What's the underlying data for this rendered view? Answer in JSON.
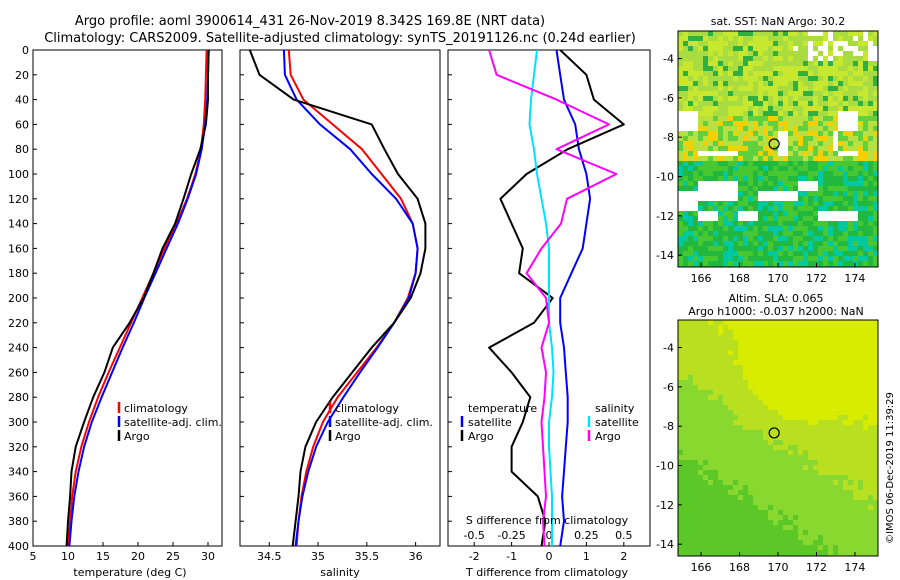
{
  "figure": {
    "title_line1": "Argo profile: aoml 3900614_431 26-Nov-2019 8.342S 169.8E (NRT data)",
    "title_line2": "Climatology: CARS2009. Satellite-adjusted climatology: synTS_20191126.nc (0.24d earlier)",
    "stamp": "©IMOS 06-Dec-2019 11:39:29"
  },
  "colors": {
    "climatology": "#ff0000",
    "satellite": "#0000ff",
    "argo": "#000000",
    "satellite_salinity": "#00e0ff",
    "salinity_diff": "#ff00ff"
  },
  "chart_data": [
    {
      "id": "temperature",
      "type": "line",
      "xlabel": "temperature (deg C)",
      "ylabel": "",
      "xlim": [
        5,
        32
      ],
      "ylim": [
        400,
        0
      ],
      "xticks": [
        5,
        10,
        15,
        20,
        25,
        30
      ],
      "yticks": [
        0,
        20,
        40,
        60,
        80,
        100,
        120,
        140,
        160,
        180,
        200,
        220,
        240,
        260,
        280,
        300,
        320,
        340,
        360,
        380,
        400
      ],
      "legend": [
        "climatology",
        "satellite-adj. clim.",
        "Argo"
      ],
      "legend_position": "lower-center",
      "series": [
        {
          "name": "climatology",
          "color": "#ff0000",
          "depth": [
            0,
            20,
            40,
            60,
            80,
            100,
            120,
            140,
            160,
            180,
            200,
            220,
            240,
            260,
            280,
            300,
            320,
            340,
            360,
            380,
            400
          ],
          "values": [
            29.8,
            29.7,
            29.6,
            29.4,
            29.0,
            28.2,
            27.0,
            25.5,
            23.8,
            22.2,
            20.6,
            19.0,
            17.4,
            15.8,
            14.3,
            13.0,
            11.9,
            11.1,
            10.6,
            10.3,
            10.0
          ]
        },
        {
          "name": "satellite-adj. clim.",
          "color": "#0000ff",
          "depth": [
            0,
            20,
            40,
            60,
            80,
            100,
            120,
            140,
            160,
            180,
            200,
            220,
            240,
            260,
            280,
            300,
            320,
            340,
            360,
            380,
            400
          ],
          "values": [
            30.1,
            30.0,
            29.9,
            29.6,
            29.1,
            28.3,
            27.1,
            25.7,
            24.1,
            22.5,
            20.9,
            19.4,
            17.8,
            16.3,
            14.8,
            13.4,
            12.3,
            11.5,
            10.9,
            10.5,
            10.2
          ]
        },
        {
          "name": "Argo",
          "color": "#000000",
          "depth": [
            0,
            20,
            40,
            60,
            80,
            100,
            120,
            140,
            160,
            180,
            200,
            220,
            240,
            260,
            280,
            300,
            320,
            340,
            360,
            380,
            400
          ],
          "values": [
            30.1,
            30.0,
            30.0,
            29.7,
            28.9,
            27.6,
            26.5,
            25.3,
            23.5,
            22.2,
            20.8,
            18.8,
            16.4,
            15.2,
            13.6,
            12.3,
            11.1,
            10.5,
            10.3,
            10.0,
            9.8
          ]
        }
      ]
    },
    {
      "id": "salinity",
      "type": "line",
      "xlabel": "salinity",
      "xlim": [
        34.2,
        36.25
      ],
      "ylim": [
        400,
        0
      ],
      "xticks": [
        34.5,
        35,
        35.5,
        36
      ],
      "legend": [
        "climatology",
        "satellite-adj. clim.",
        "Argo"
      ],
      "legend_position": "lower-center",
      "series": [
        {
          "name": "climatology",
          "color": "#ff0000",
          "depth": [
            0,
            20,
            40,
            60,
            80,
            100,
            120,
            140,
            160,
            180,
            200,
            220,
            240,
            260,
            280,
            300,
            320,
            340,
            360,
            380,
            400
          ],
          "values": [
            34.7,
            34.72,
            34.85,
            35.15,
            35.45,
            35.65,
            35.85,
            35.97,
            36.02,
            36.0,
            35.92,
            35.78,
            35.6,
            35.4,
            35.2,
            35.05,
            34.95,
            34.88,
            34.83,
            34.8,
            34.78
          ]
        },
        {
          "name": "satellite-adj. clim.",
          "color": "#0000ff",
          "depth": [
            0,
            20,
            40,
            60,
            80,
            100,
            120,
            140,
            160,
            180,
            200,
            220,
            240,
            260,
            280,
            300,
            320,
            340,
            360,
            380,
            400
          ],
          "values": [
            34.65,
            34.66,
            34.78,
            35.02,
            35.33,
            35.55,
            35.8,
            35.97,
            36.02,
            36.0,
            35.93,
            35.78,
            35.61,
            35.43,
            35.26,
            35.1,
            34.98,
            34.9,
            34.84,
            34.8,
            34.77
          ]
        },
        {
          "name": "Argo",
          "color": "#000000",
          "depth": [
            0,
            20,
            40,
            60,
            80,
            100,
            120,
            140,
            160,
            180,
            200,
            220,
            240,
            260,
            280,
            300,
            320,
            340,
            360,
            380,
            400
          ],
          "values": [
            34.3,
            34.4,
            34.75,
            35.55,
            35.68,
            35.82,
            36.02,
            36.1,
            36.1,
            36.05,
            35.95,
            35.78,
            35.55,
            35.35,
            35.15,
            34.98,
            34.87,
            34.82,
            34.8,
            34.77,
            34.74
          ]
        }
      ]
    },
    {
      "id": "differences",
      "type": "line",
      "xlabel": "T difference from climatology",
      "xlabel_top": "S difference from climatology",
      "xlim": [
        -2.7,
        2.7
      ],
      "ylim": [
        400,
        0
      ],
      "xticks": [
        -2,
        -1,
        0,
        1,
        2
      ],
      "s_ticks": [
        "-0.5",
        "-0.25",
        "0",
        "0.25",
        "0.5"
      ],
      "s_scale": 4,
      "legend_temperature": {
        "heading": "temperature",
        "items": [
          "satellite",
          "Argo"
        ]
      },
      "legend_salinity": {
        "heading": "salinity",
        "items": [
          "satellite",
          "Argo"
        ]
      },
      "series": [
        {
          "name": "T satellite",
          "color": "#0000ff",
          "depth": [
            0,
            20,
            40,
            60,
            80,
            100,
            120,
            140,
            160,
            180,
            200,
            220,
            240,
            260,
            280,
            300,
            320,
            340,
            360,
            380,
            400
          ],
          "values": [
            0.2,
            0.3,
            0.4,
            0.7,
            0.8,
            1.0,
            1.1,
            1.0,
            0.9,
            0.6,
            0.3,
            0.3,
            0.4,
            0.45,
            0.5,
            0.5,
            0.45,
            0.4,
            0.35,
            0.4,
            0.3
          ]
        },
        {
          "name": "T Argo",
          "color": "#000000",
          "depth": [
            0,
            20,
            40,
            60,
            80,
            100,
            120,
            140,
            160,
            180,
            200,
            220,
            240,
            260,
            280,
            300,
            320,
            340,
            360,
            380,
            400
          ],
          "values": [
            0.3,
            1.0,
            1.2,
            2.0,
            0.5,
            -0.6,
            -1.3,
            -1.0,
            -0.7,
            -0.8,
            0.1,
            -0.4,
            -1.6,
            -1.0,
            -0.5,
            -0.7,
            -1.0,
            -1.0,
            -0.3,
            -0.1,
            -0.2
          ]
        },
        {
          "name": "S satellite",
          "color": "#00e0ff",
          "depth": [
            0,
            20,
            40,
            60,
            80,
            100,
            120,
            140,
            160,
            180,
            200,
            220,
            240,
            260,
            280,
            300,
            320,
            340,
            360,
            380,
            400
          ],
          "values": [
            -0.08,
            -0.1,
            -0.12,
            -0.13,
            -0.1,
            -0.08,
            -0.05,
            -0.02,
            0.0,
            0.0,
            0.0,
            0.0,
            0.02,
            0.03,
            0.02,
            0.0,
            0.0,
            0.01,
            0.02,
            0.02,
            0.02
          ]
        },
        {
          "name": "S Argo",
          "color": "#ff00ff",
          "depth": [
            0,
            20,
            40,
            60,
            80,
            100,
            120,
            140,
            160,
            180,
            200,
            220,
            240,
            260,
            280,
            300,
            320,
            340,
            360,
            380,
            400
          ],
          "values": [
            -0.4,
            -0.35,
            0.05,
            0.4,
            0.05,
            0.45,
            0.12,
            0.08,
            -0.05,
            -0.15,
            -0.02,
            0.0,
            -0.05,
            -0.02,
            -0.03,
            -0.05,
            -0.04,
            -0.03,
            -0.02,
            -0.04,
            -0.03
          ]
        }
      ]
    },
    {
      "id": "sst_map",
      "type": "heatmap",
      "title": "sat. SST: NaN Argo: 30.2",
      "xticks": [
        166,
        168,
        170,
        172,
        174
      ],
      "yticks": [
        -4,
        -6,
        -8,
        -10,
        -12,
        -14
      ],
      "xlim": [
        164.8,
        175.2
      ],
      "ylim": [
        -14.6,
        -2.6
      ],
      "argo_position": [
        169.8,
        -8.342
      ]
    },
    {
      "id": "sla_map",
      "type": "heatmap",
      "title_line1": "Altim. SLA: 0.065",
      "title_line2": "Argo h1000: -0.037 h2000: NaN",
      "xticks": [
        166,
        168,
        170,
        172,
        174
      ],
      "yticks": [
        -4,
        -6,
        -8,
        -10,
        -12,
        -14
      ],
      "xlim": [
        164.8,
        175.2
      ],
      "ylim": [
        -14.6,
        -2.6
      ],
      "argo_position": [
        169.8,
        -8.342
      ]
    }
  ]
}
